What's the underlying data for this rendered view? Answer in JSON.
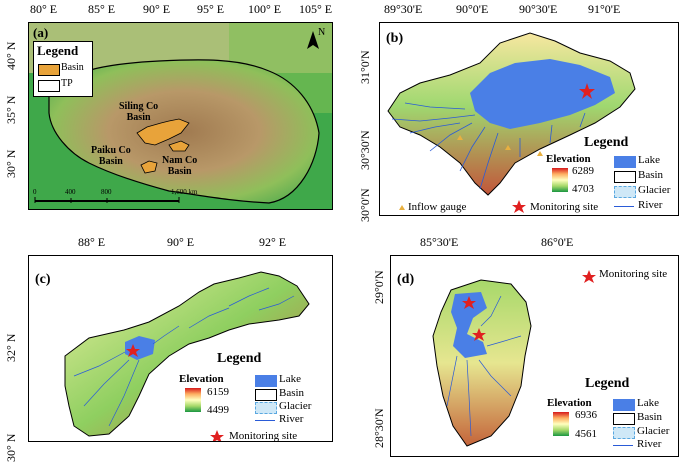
{
  "panel_a": {
    "label": "(a)",
    "lon_ticks": [
      "80° E",
      "85° E",
      "90° E",
      "95° E",
      "100° E",
      "105° E"
    ],
    "lat_ticks": [
      "40° N",
      "35° N",
      "30° N"
    ],
    "legend_title": "Legend",
    "legend_items": [
      "Basin",
      "TP"
    ],
    "basin_labels": [
      "Siling Co\nBasin",
      "Paiku Co\nBasin",
      "Nam Co\nBasin"
    ],
    "scale_ticks": [
      "0",
      "400",
      "800",
      "1,600 km"
    ],
    "north_label": "N",
    "colors": {
      "basin": "#e8a33a",
      "tp": "#ffffff"
    }
  },
  "panel_b": {
    "label": "(b)",
    "lon_ticks": [
      "89°30'E",
      "90°0'E",
      "90°30'E",
      "91°0'E"
    ],
    "lat_ticks": [
      "31°0'N",
      "30°30'N",
      "30°0'N"
    ],
    "legend_title": "Legend",
    "elevation_title": "Elevation",
    "elev_max": "6289",
    "elev_min": "4703",
    "items": [
      "Lake",
      "Basin",
      "Glacier",
      "River"
    ],
    "inflow": "Inflow gauge",
    "monitoring": "Monitoring site"
  },
  "panel_c": {
    "label": "(c)",
    "lon_ticks": [
      "88° E",
      "90° E",
      "92° E"
    ],
    "lat_ticks": [
      "32° N",
      "30° N"
    ],
    "legend_title": "Legend",
    "elevation_title": "Elevation",
    "elev_max": "6159",
    "elev_min": "4499",
    "items": [
      "Lake",
      "Basin",
      "Glacier",
      "River"
    ],
    "monitoring": "Monitoring site"
  },
  "panel_d": {
    "label": "(d)",
    "lon_ticks": [
      "85°30'E",
      "86°0'E"
    ],
    "lat_ticks": [
      "29°0'N",
      "28°30'N"
    ],
    "legend_title": "Legend",
    "elevation_title": "Elevation",
    "elev_max": "6936",
    "elev_min": "4561",
    "items": [
      "Lake",
      "Basin",
      "Glacier",
      "River"
    ],
    "monitoring": "Monitoring site"
  },
  "colors": {
    "lake": "#4a7fe6",
    "river": "#2a5bd7",
    "star": "#e02020",
    "gauge": "#e8b040"
  }
}
